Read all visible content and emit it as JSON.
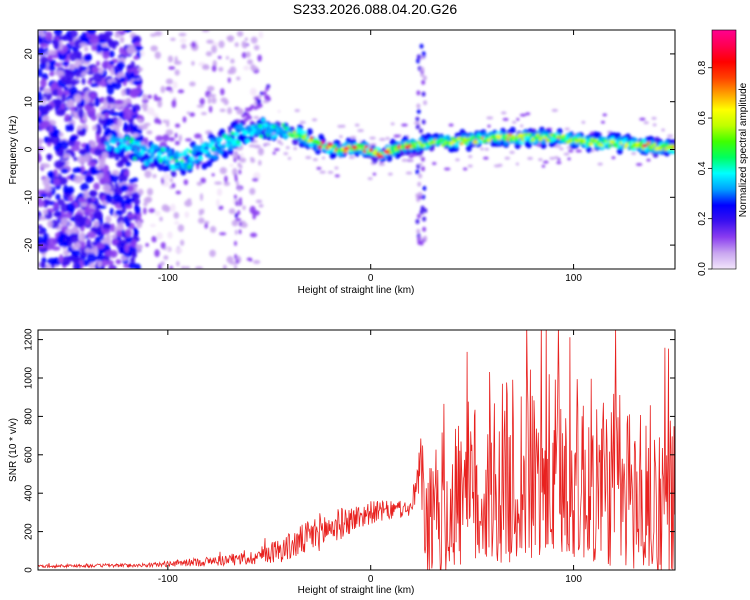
{
  "title": "S233.2026.088.04.20.G26",
  "chart_data": [
    {
      "type": "heatmap",
      "xlabel": "Height of straight line (km)",
      "ylabel": "Frequency (Hz)",
      "xlim": [
        -164,
        150
      ],
      "ylim": [
        -25,
        25
      ],
      "x_ticks": [
        -100,
        0,
        100
      ],
      "y_ticks": [
        -20,
        -10,
        0,
        10,
        20
      ],
      "colorbar": {
        "label": "Normalized spectral amplitude",
        "range": [
          0,
          0.95
        ],
        "ticks": [
          "0.0",
          "0.2",
          "0.4",
          "0.6",
          "0.8"
        ],
        "colors": [
          "#f3e6fb",
          "#c9a6f0",
          "#8a3df0",
          "#3a10f0",
          "#0000ff",
          "#00a0ff",
          "#00ffff",
          "#00ff60",
          "#40ff00",
          "#c0ff00",
          "#ffff00",
          "#ffa000",
          "#ff4000",
          "#ff0000",
          "#ff0050",
          "#ff0090"
        ]
      },
      "ridge": [
        {
          "x": -125,
          "f": 1.5
        },
        {
          "x": -110,
          "f": -1
        },
        {
          "x": -95,
          "f": -2.5
        },
        {
          "x": -85,
          "f": -1.5
        },
        {
          "x": -70,
          "f": 2
        },
        {
          "x": -55,
          "f": 4.5
        },
        {
          "x": -45,
          "f": 4
        },
        {
          "x": -35,
          "f": 3
        },
        {
          "x": -25,
          "f": 1
        },
        {
          "x": -15,
          "f": 0
        },
        {
          "x": -5,
          "f": 0.5
        },
        {
          "x": 5,
          "f": -1
        },
        {
          "x": 15,
          "f": 0.5
        },
        {
          "x": 25,
          "f": 1
        },
        {
          "x": 35,
          "f": 1.5
        },
        {
          "x": 50,
          "f": 2
        },
        {
          "x": 70,
          "f": 2.5
        },
        {
          "x": 90,
          "f": 2.5
        },
        {
          "x": 110,
          "f": 1.5
        },
        {
          "x": 130,
          "f": 1
        },
        {
          "x": 145,
          "f": 0.5
        }
      ]
    },
    {
      "type": "line",
      "xlabel": "Height of straight line (km)",
      "ylabel": "SNR (10 * v/v)",
      "xlim": [
        -164,
        150
      ],
      "ylim": [
        0,
        1250
      ],
      "x_ticks": [
        -100,
        0,
        100
      ],
      "y_ticks": [
        0,
        200,
        400,
        600,
        800,
        1000,
        1200
      ],
      "color": "#e8211f",
      "envelope": [
        {
          "x": -164,
          "base": 20,
          "amp": 15
        },
        {
          "x": -110,
          "base": 25,
          "amp": 20
        },
        {
          "x": -80,
          "base": 45,
          "amp": 50
        },
        {
          "x": -60,
          "base": 60,
          "amp": 70
        },
        {
          "x": -40,
          "base": 120,
          "amp": 150
        },
        {
          "x": -25,
          "base": 200,
          "amp": 200
        },
        {
          "x": -10,
          "base": 260,
          "amp": 150
        },
        {
          "x": 0,
          "base": 300,
          "amp": 120
        },
        {
          "x": 20,
          "base": 320,
          "amp": 80
        },
        {
          "x": 24,
          "base": 500,
          "amp": 350
        },
        {
          "x": 28,
          "base": 150,
          "amp": 500
        },
        {
          "x": 40,
          "base": 300,
          "amp": 700
        },
        {
          "x": 60,
          "base": 350,
          "amp": 750
        },
        {
          "x": 75,
          "base": 400,
          "amp": 850
        },
        {
          "x": 100,
          "base": 400,
          "amp": 800
        },
        {
          "x": 120,
          "base": 350,
          "amp": 800
        },
        {
          "x": 135,
          "base": 300,
          "amp": 750
        },
        {
          "x": 150,
          "base": 250,
          "amp": 750
        }
      ]
    }
  ]
}
